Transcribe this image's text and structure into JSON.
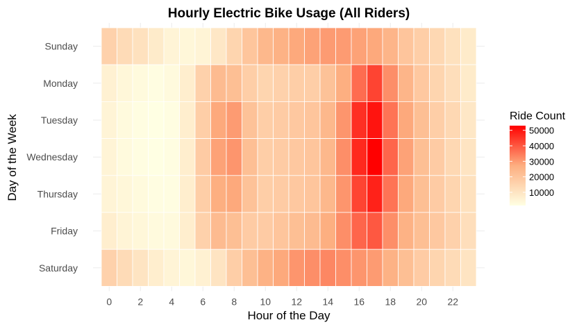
{
  "chart_data": {
    "type": "heatmap",
    "title": "Hourly Electric Bike Usage (All Riders)",
    "xlabel": "Hour of the Day",
    "ylabel": "Day of the Week",
    "x": [
      0,
      1,
      2,
      3,
      4,
      5,
      6,
      7,
      8,
      9,
      10,
      11,
      12,
      13,
      14,
      15,
      16,
      17,
      18,
      19,
      20,
      21,
      22,
      23
    ],
    "x_tick_labels": [
      "0",
      "2",
      "4",
      "6",
      "8",
      "10",
      "12",
      "14",
      "16",
      "18",
      "20",
      "22"
    ],
    "x_tick_values": [
      0,
      2,
      4,
      6,
      8,
      10,
      12,
      14,
      16,
      18,
      20,
      22
    ],
    "y": [
      "Sunday",
      "Monday",
      "Tuesday",
      "Wednesday",
      "Thursday",
      "Friday",
      "Saturday"
    ],
    "values": [
      [
        16000,
        13000,
        11000,
        8000,
        5000,
        4000,
        5000,
        9000,
        15000,
        20000,
        24000,
        26000,
        28000,
        29000,
        30000,
        30000,
        29000,
        28000,
        25000,
        20000,
        17000,
        14000,
        11000,
        8000
      ],
      [
        6000,
        4000,
        3000,
        2000,
        3000,
        7000,
        16000,
        23000,
        22000,
        17000,
        15000,
        16000,
        17000,
        17000,
        21000,
        27000,
        37000,
        43000,
        32000,
        25000,
        19000,
        15000,
        12000,
        8000
      ],
      [
        5000,
        3000,
        2000,
        1500,
        2000,
        7000,
        17000,
        28000,
        30000,
        21000,
        17000,
        18000,
        19000,
        20000,
        24000,
        31000,
        46000,
        50000,
        36000,
        28000,
        22000,
        17000,
        14000,
        9000
      ],
      [
        5000,
        3000,
        2000,
        1500,
        2000,
        7000,
        18000,
        29000,
        31000,
        22000,
        17000,
        18000,
        19000,
        20000,
        24000,
        32000,
        47000,
        53000,
        38000,
        29000,
        22000,
        18000,
        14000,
        10000
      ],
      [
        5000,
        4000,
        3000,
        2000,
        2000,
        7000,
        17000,
        27000,
        28000,
        21000,
        17000,
        18000,
        19000,
        20000,
        24000,
        31000,
        43000,
        48000,
        36000,
        28000,
        22000,
        18000,
        15000,
        11000
      ],
      [
        7000,
        5000,
        4000,
        3000,
        3000,
        7000,
        16000,
        23000,
        22000,
        18000,
        18000,
        20000,
        22000,
        23000,
        27000,
        32000,
        38000,
        40000,
        32000,
        26000,
        22000,
        19000,
        16000,
        12000
      ],
      [
        16000,
        13000,
        10000,
        7000,
        5000,
        4000,
        6000,
        10000,
        17000,
        22000,
        26000,
        28000,
        31000,
        32000,
        33000,
        32000,
        31000,
        30000,
        26000,
        22000,
        18000,
        15000,
        13000,
        10000
      ]
    ],
    "zlabel": "Ride Count",
    "legend_ticks": [
      "10000",
      "20000",
      "30000",
      "40000",
      "50000"
    ],
    "legend_tick_values": [
      10000,
      20000,
      30000,
      40000,
      50000
    ],
    "zlim": [
      1500,
      53000
    ],
    "colors": {
      "low": "#ffffe3",
      "mid": "#fdae80",
      "high": "#ff0000"
    },
    "legend_position": "right"
  }
}
